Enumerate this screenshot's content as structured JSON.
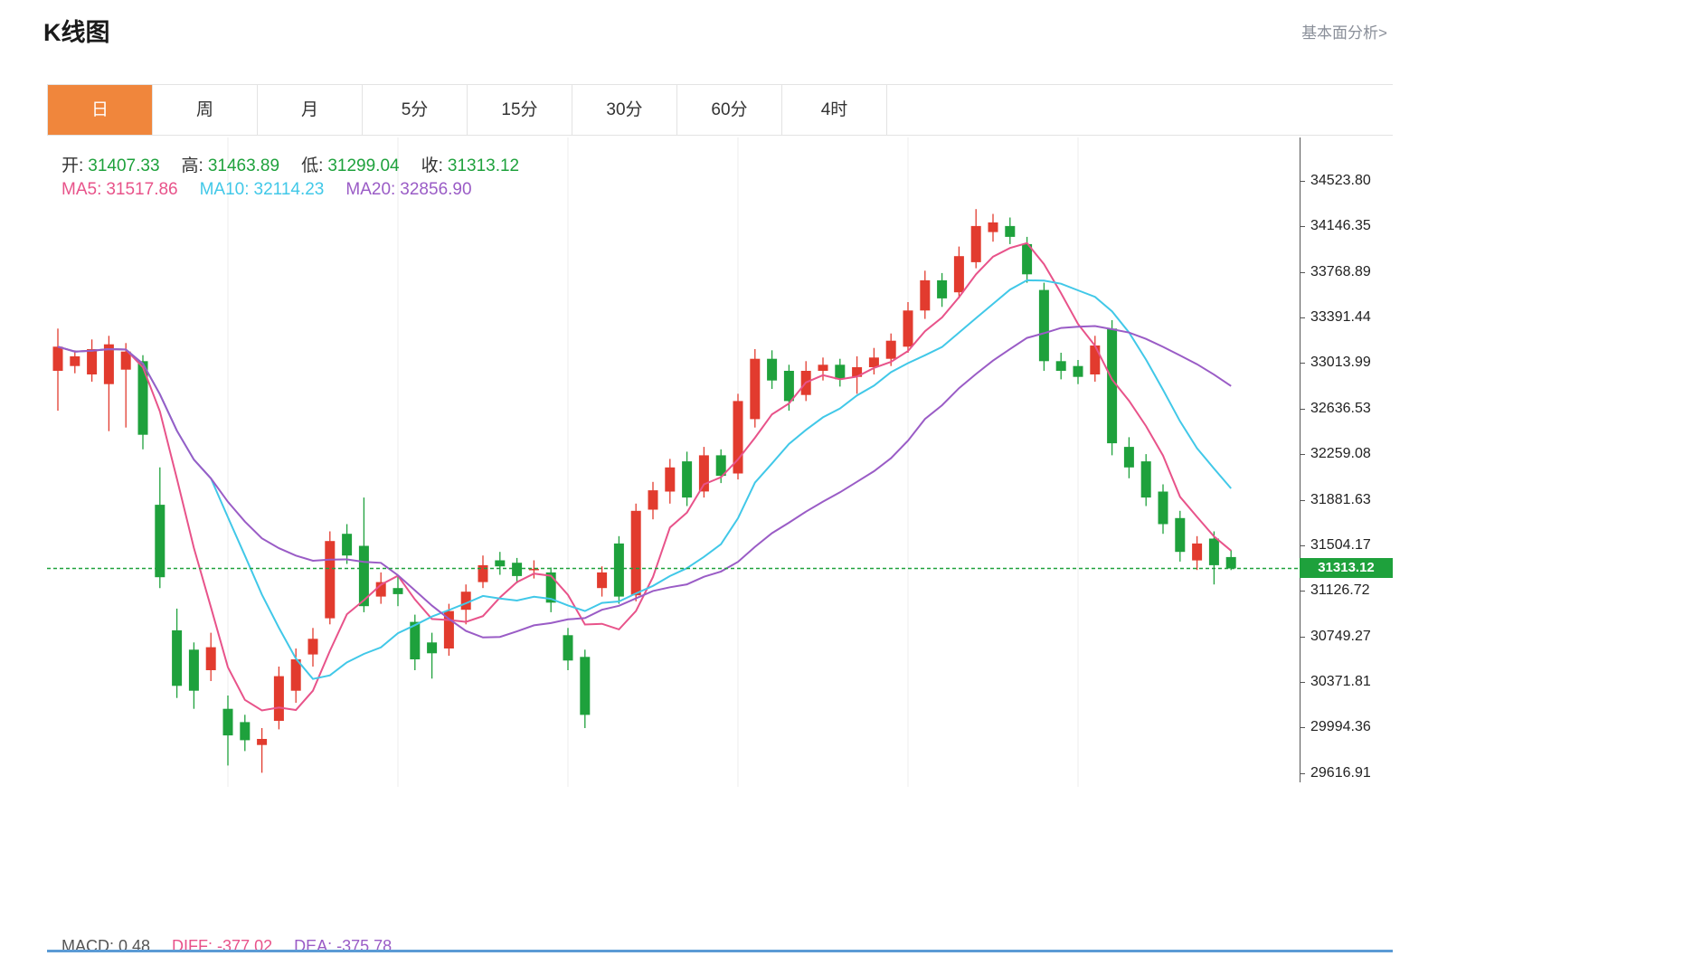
{
  "header": {
    "title": "K线图",
    "link_label": "基本面分析>"
  },
  "tabs": {
    "items": [
      "日",
      "周",
      "月",
      "5分",
      "15分",
      "30分",
      "60分",
      "4时"
    ],
    "active_index": 0
  },
  "legend": {
    "ohlc": [
      {
        "label": "开:",
        "value": "31407.33"
      },
      {
        "label": "高:",
        "value": "31463.89"
      },
      {
        "label": "低:",
        "value": "31299.04"
      },
      {
        "label": "收:",
        "value": "31313.12"
      }
    ],
    "ma": [
      {
        "label": "MA5:",
        "value": "31517.86",
        "color": "#e8538a"
      },
      {
        "label": "MA10:",
        "value": "32114.23",
        "color": "#41c8e8"
      },
      {
        "label": "MA20:",
        "value": "32856.90",
        "color": "#9a5cc6"
      }
    ]
  },
  "macd_legend": [
    {
      "label": "MACD:",
      "value": "0.48",
      "color": "#555555"
    },
    {
      "label": "DIFF:",
      "value": "-377.02",
      "color": "#e8538a"
    },
    {
      "label": "DEA:",
      "value": "-375.78",
      "color": "#9a5cc6"
    }
  ],
  "chart_data": {
    "type": "candlestick",
    "title": "K线图",
    "period": "日",
    "last": {
      "open": 31407.33,
      "high": 31463.89,
      "low": 31299.04,
      "close": 31313.12
    },
    "close_label": "31313.12",
    "y_ticks": [
      34523.8,
      34146.35,
      33768.89,
      33391.44,
      33013.99,
      32636.53,
      32259.08,
      31881.63,
      31504.17,
      31126.72,
      30749.27,
      30371.81,
      29994.36,
      29616.91
    ],
    "ma_windows": [
      5,
      10,
      20
    ],
    "colors": {
      "up": "#e23b2e",
      "down": "#1ea13c",
      "ma5": "#e8538a",
      "ma10": "#41c8e8",
      "ma20": "#9a5cc6",
      "close_line": "#1ea13c",
      "badge_bg": "#1ea13c",
      "badge_text": "#ffffff",
      "grid": "#eeeeee"
    },
    "candles": [
      [
        32950,
        33300,
        32620,
        33150
      ],
      [
        32990,
        33120,
        32930,
        33070
      ],
      [
        32920,
        33210,
        32860,
        33130
      ],
      [
        32840,
        33240,
        32450,
        33170
      ],
      [
        32960,
        33180,
        32480,
        33110
      ],
      [
        33030,
        33080,
        32300,
        32420
      ],
      [
        31840,
        32150,
        31150,
        31240
      ],
      [
        30800,
        30980,
        30240,
        30340
      ],
      [
        30640,
        30700,
        30150,
        30300
      ],
      [
        30470,
        30780,
        30380,
        30660
      ],
      [
        30150,
        30260,
        29680,
        29930
      ],
      [
        30040,
        30100,
        29800,
        29890
      ],
      [
        29850,
        29990,
        29620,
        29900
      ],
      [
        30050,
        30500,
        29980,
        30420
      ],
      [
        30300,
        30650,
        30200,
        30560
      ],
      [
        30600,
        30820,
        30500,
        30730
      ],
      [
        30900,
        31620,
        30850,
        31540
      ],
      [
        31600,
        31680,
        31350,
        31420
      ],
      [
        31500,
        31900,
        30950,
        31000
      ],
      [
        31080,
        31280,
        31020,
        31200
      ],
      [
        31150,
        31260,
        31000,
        31100
      ],
      [
        30870,
        30930,
        30470,
        30560
      ],
      [
        30700,
        30780,
        30400,
        30610
      ],
      [
        30650,
        31020,
        30590,
        30960
      ],
      [
        30970,
        31180,
        30850,
        31120
      ],
      [
        31200,
        31420,
        31150,
        31340
      ],
      [
        31380,
        31450,
        31260,
        31330
      ],
      [
        31360,
        31400,
        31190,
        31250
      ],
      [
        31300,
        31380,
        31230,
        31310
      ],
      [
        31280,
        31320,
        30950,
        31030
      ],
      [
        30760,
        30820,
        30470,
        30550
      ],
      [
        30580,
        30640,
        29990,
        30100
      ],
      [
        31150,
        31330,
        31080,
        31280
      ],
      [
        31520,
        31580,
        31020,
        31080
      ],
      [
        31090,
        31850,
        31040,
        31790
      ],
      [
        31800,
        32030,
        31720,
        31960
      ],
      [
        31950,
        32220,
        31850,
        32150
      ],
      [
        32200,
        32280,
        31830,
        31900
      ],
      [
        31950,
        32320,
        31900,
        32250
      ],
      [
        32250,
        32300,
        32020,
        32080
      ],
      [
        32100,
        32760,
        32050,
        32700
      ],
      [
        32550,
        33130,
        32480,
        33050
      ],
      [
        33050,
        33120,
        32800,
        32870
      ],
      [
        32950,
        33000,
        32620,
        32700
      ],
      [
        32750,
        33030,
        32700,
        32950
      ],
      [
        32950,
        33060,
        32870,
        33000
      ],
      [
        33000,
        33050,
        32820,
        32880
      ],
      [
        32900,
        33070,
        32760,
        32980
      ],
      [
        32980,
        33140,
        32920,
        33060
      ],
      [
        33050,
        33260,
        32990,
        33200
      ],
      [
        33150,
        33520,
        33100,
        33450
      ],
      [
        33450,
        33780,
        33380,
        33700
      ],
      [
        33700,
        33760,
        33480,
        33550
      ],
      [
        33600,
        33980,
        33550,
        33900
      ],
      [
        33850,
        34290,
        33800,
        34150
      ],
      [
        34100,
        34250,
        34020,
        34180
      ],
      [
        34150,
        34220,
        34000,
        34060
      ],
      [
        34000,
        34060,
        33680,
        33750
      ],
      [
        33620,
        33680,
        32950,
        33030
      ],
      [
        33030,
        33100,
        32880,
        32950
      ],
      [
        32990,
        33040,
        32840,
        32900
      ],
      [
        32920,
        33240,
        32860,
        33160
      ],
      [
        33300,
        33370,
        32250,
        32350
      ],
      [
        32320,
        32400,
        32060,
        32150
      ],
      [
        32200,
        32260,
        31830,
        31900
      ],
      [
        31950,
        32010,
        31600,
        31680
      ],
      [
        31730,
        31790,
        31370,
        31450
      ],
      [
        31380,
        31580,
        31300,
        31520
      ],
      [
        31560,
        31620,
        31180,
        31340
      ],
      [
        31407.33,
        31463.89,
        31299.04,
        31313.12
      ]
    ]
  }
}
